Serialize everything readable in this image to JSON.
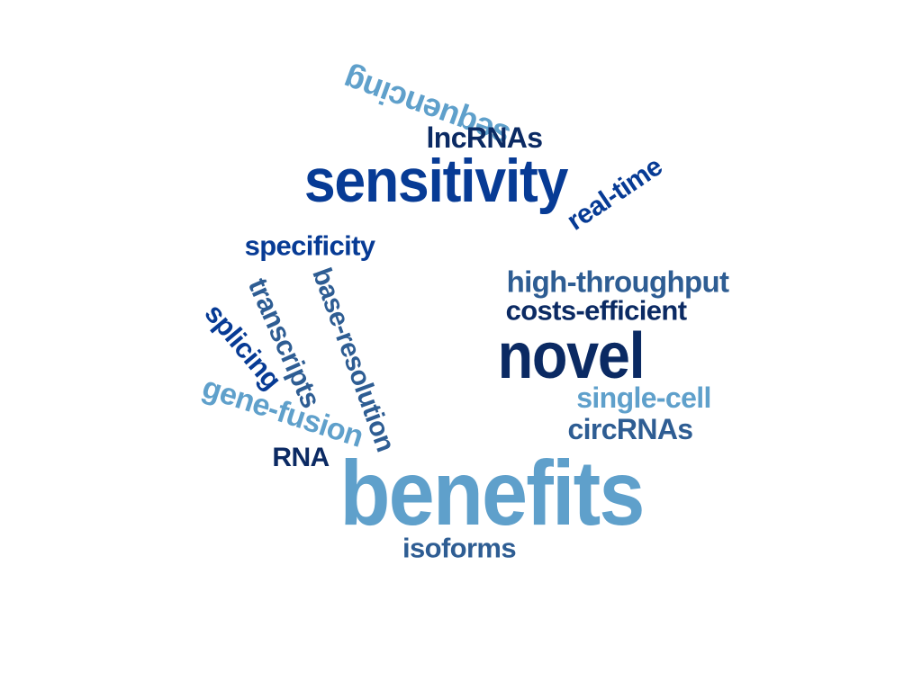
{
  "word_cloud": {
    "words": {
      "sequencing": "sequencing",
      "lncrnas": "lncRNAs",
      "sensitivity": "sensitivity",
      "real_time": "real-time",
      "specificity": "specificity",
      "high_throughput": "high-throughput",
      "costs_efficient": "costs-efficient",
      "novel": "novel",
      "transcripts": "transcripts",
      "base_resolution": "base-resolution",
      "splicing": "splicing",
      "gene_fusion": "gene-fusion",
      "single_cell": "single-cell",
      "circrnas": "circRNAs",
      "rna": "RNA",
      "benefits": "benefits",
      "isoforms": "isoforms"
    },
    "colors": {
      "light_blue": "#5fa0cb",
      "medium_blue": "#2e5d93",
      "royal_blue": "#073b95",
      "navy": "#0b2a63",
      "background": "#ffffff"
    }
  }
}
